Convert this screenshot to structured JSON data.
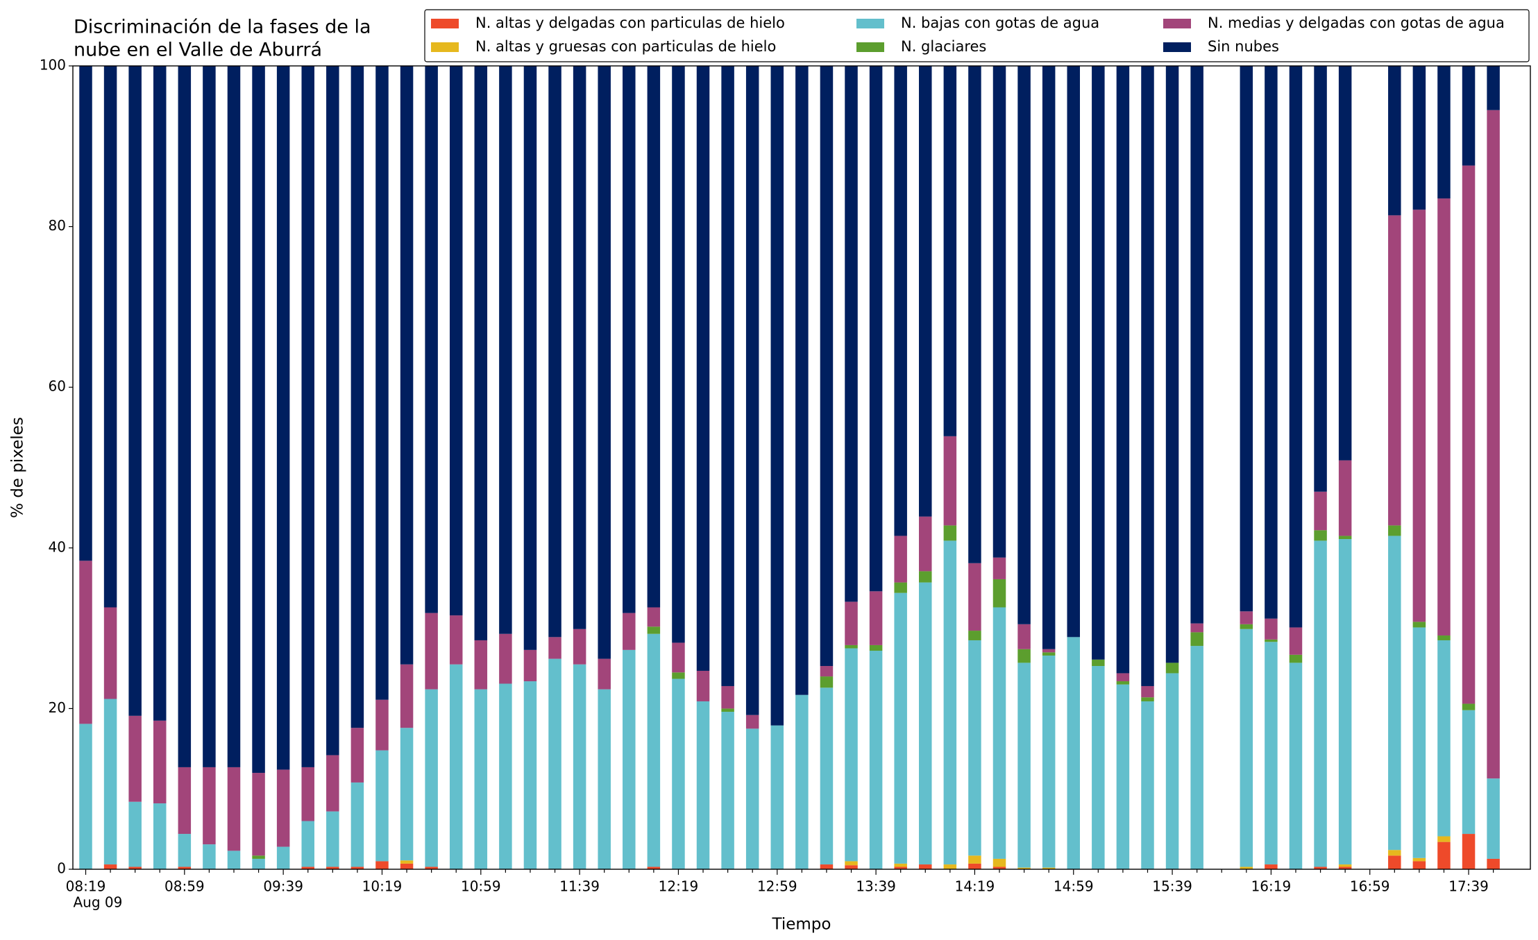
{
  "chart_data": {
    "type": "stacked_bar",
    "title": [
      "Discriminación de la fases de la",
      "nube en el Valle de Aburrá"
    ],
    "x_label": "Tiempo",
    "y_label": "% de pixeles",
    "date_label": "Aug 09",
    "categories": [
      "08:19",
      null,
      null,
      null,
      "08:59",
      null,
      null,
      null,
      "09:39",
      null,
      null,
      null,
      "10:19",
      null,
      null,
      null,
      "10:59",
      null,
      null,
      null,
      "11:39",
      null,
      null,
      null,
      "12:19",
      null,
      null,
      null,
      "12:59",
      null,
      null,
      null,
      "13:39",
      null,
      null,
      null,
      "14:19",
      null,
      null,
      null,
      "14:59",
      null,
      null,
      null,
      "15:39",
      null,
      null,
      null,
      "16:19",
      null,
      null,
      null,
      "16:59",
      null,
      null,
      null,
      "17:39",
      null
    ],
    "ylim": [
      0,
      100
    ],
    "yticks": [
      0,
      20,
      40,
      60,
      80,
      100
    ],
    "grid": false,
    "series": [
      {
        "name": "N. altas y delgadas con particulas de hielo",
        "color": "#ee4a2a",
        "values": [
          0,
          0.6,
          0.3,
          0,
          0.3,
          0,
          0,
          0,
          0,
          0.3,
          0.3,
          0.3,
          1.0,
          0.7,
          0.3,
          0,
          0,
          0,
          0,
          0,
          0,
          0,
          0,
          0.3,
          0,
          0,
          0,
          0,
          0,
          0,
          0.6,
          0.5,
          0,
          0.3,
          0.6,
          0,
          0.7,
          0.3,
          0,
          0,
          0,
          0,
          0,
          0,
          0,
          0,
          null,
          0,
          0.6,
          0,
          0.3,
          0.3,
          null,
          1.7,
          1.0,
          3.4,
          4.4,
          1.3
        ]
      },
      {
        "name": "N. altas y gruesas con particulas de hielo",
        "color": "#e6b81e",
        "values": [
          0,
          0,
          0,
          0,
          0,
          0,
          0,
          0,
          0,
          0,
          0,
          0,
          0,
          0.4,
          0,
          0,
          0,
          0,
          0,
          0,
          0,
          0,
          0,
          0,
          0,
          0,
          0,
          0,
          0,
          0,
          0,
          0.5,
          0,
          0.4,
          0,
          0.6,
          1.0,
          1.0,
          0.2,
          0.2,
          0,
          0,
          0,
          0,
          0,
          0,
          null,
          0.3,
          0,
          0,
          0,
          0.3,
          null,
          0.7,
          0.4,
          0.7,
          0,
          0
        ]
      },
      {
        "name": "N. bajas con gotas de agua",
        "color": "#63bfcc",
        "values": [
          18.1,
          20.6,
          8.1,
          8.2,
          4.1,
          3.1,
          2.3,
          1.3,
          2.8,
          5.7,
          6.9,
          10.5,
          13.8,
          16.5,
          22.1,
          25.5,
          22.4,
          23.1,
          23.4,
          26.2,
          25.5,
          22.4,
          27.3,
          29.0,
          23.7,
          20.9,
          19.6,
          17.5,
          17.9,
          21.7,
          22.0,
          26.5,
          27.2,
          33.7,
          35.1,
          40.3,
          26.8,
          31.3,
          25.5,
          26.4,
          28.9,
          25.3,
          23.0,
          20.9,
          24.4,
          27.8,
          null,
          29.6,
          27.7,
          25.7,
          40.6,
          40.5,
          null,
          39.1,
          28.7,
          24.4,
          15.4,
          10.0
        ]
      },
      {
        "name": "N. glaciares",
        "color": "#5c9e2e",
        "values": [
          0,
          0,
          0,
          0,
          0,
          0,
          0,
          0.4,
          0,
          0,
          0,
          0,
          0,
          0,
          0,
          0,
          0,
          0,
          0,
          0,
          0,
          0,
          0,
          0.9,
          0.8,
          0,
          0.4,
          0,
          0,
          0,
          1.4,
          0.4,
          0.7,
          1.3,
          1.4,
          1.9,
          1.2,
          3.5,
          1.7,
          0.4,
          0,
          0.8,
          0.4,
          0.5,
          1.3,
          1.7,
          null,
          0.6,
          0.3,
          1.0,
          1.3,
          0.4,
          null,
          1.3,
          0.7,
          0.6,
          0.8,
          0
        ]
      },
      {
        "name": "N. medias y delgadas con gotas de agua",
        "color": "#a2457a",
        "values": [
          20.3,
          11.4,
          10.7,
          10.3,
          8.3,
          9.6,
          10.4,
          10.3,
          9.6,
          6.7,
          7.0,
          6.8,
          6.3,
          7.9,
          9.5,
          6.1,
          6.1,
          6.2,
          3.9,
          2.7,
          4.4,
          3.8,
          4.6,
          2.4,
          3.7,
          3.8,
          2.8,
          1.7,
          0,
          0,
          1.3,
          5.4,
          6.7,
          5.8,
          6.8,
          11.1,
          8.4,
          2.7,
          3.1,
          0.4,
          0,
          0,
          1.0,
          1.4,
          0,
          1.1,
          null,
          1.6,
          2.6,
          3.4,
          4.8,
          9.4,
          null,
          38.6,
          51.3,
          54.4,
          67.0,
          83.2
        ]
      },
      {
        "name": "Sin nubes",
        "color": "#001f5f",
        "values": [
          61.6,
          67.4,
          80.9,
          81.5,
          87.3,
          87.3,
          87.3,
          88.0,
          87.6,
          87.3,
          85.8,
          82.4,
          78.9,
          74.5,
          68.1,
          68.4,
          71.5,
          70.7,
          72.7,
          71.1,
          70.1,
          73.8,
          68.1,
          67.4,
          71.8,
          75.3,
          77.2,
          80.8,
          82.1,
          78.3,
          74.7,
          66.7,
          65.4,
          58.5,
          56.1,
          46.1,
          61.9,
          61.2,
          69.5,
          72.6,
          71.1,
          73.9,
          75.6,
          77.2,
          74.3,
          69.4,
          null,
          67.9,
          68.8,
          69.9,
          53.0,
          49.1,
          null,
          18.6,
          17.9,
          16.5,
          12.4,
          5.5
        ]
      }
    ]
  }
}
